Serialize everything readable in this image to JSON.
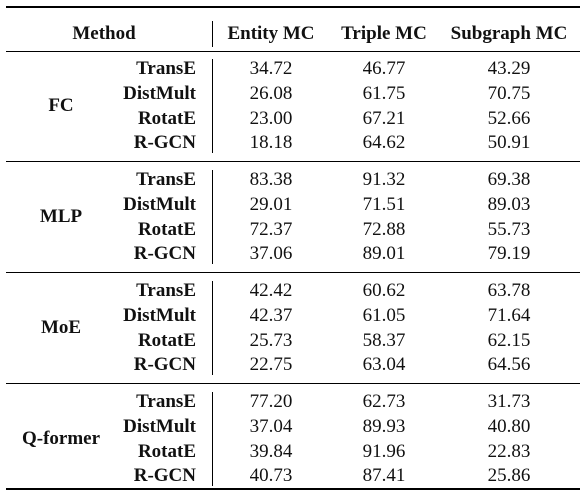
{
  "header": {
    "method": "Method",
    "col1": "Entity MC",
    "col2": "Triple MC",
    "col3": "Subgraph MC"
  },
  "groups": [
    {
      "name": "FC",
      "rows": [
        {
          "model": "TransE",
          "v1": "34.72",
          "v2": "46.77",
          "v3": "43.29"
        },
        {
          "model": "DistMult",
          "v1": "26.08",
          "v2": "61.75",
          "v3": "70.75"
        },
        {
          "model": "RotatE",
          "v1": "23.00",
          "v2": "67.21",
          "v3": "52.66"
        },
        {
          "model": "R-GCN",
          "v1": "18.18",
          "v2": "64.62",
          "v3": "50.91"
        }
      ]
    },
    {
      "name": "MLP",
      "rows": [
        {
          "model": "TransE",
          "v1": "83.38",
          "v2": "91.32",
          "v3": "69.38"
        },
        {
          "model": "DistMult",
          "v1": "29.01",
          "v2": "71.51",
          "v3": "89.03"
        },
        {
          "model": "RotatE",
          "v1": "72.37",
          "v2": "72.88",
          "v3": "55.73"
        },
        {
          "model": "R-GCN",
          "v1": "37.06",
          "v2": "89.01",
          "v3": "79.19"
        }
      ]
    },
    {
      "name": "MoE",
      "rows": [
        {
          "model": "TransE",
          "v1": "42.42",
          "v2": "60.62",
          "v3": "63.78"
        },
        {
          "model": "DistMult",
          "v1": "42.37",
          "v2": "61.05",
          "v3": "71.64"
        },
        {
          "model": "RotatE",
          "v1": "25.73",
          "v2": "58.37",
          "v3": "62.15"
        },
        {
          "model": "R-GCN",
          "v1": "22.75",
          "v2": "63.04",
          "v3": "64.56"
        }
      ]
    },
    {
      "name": "Q-former",
      "rows": [
        {
          "model": "TransE",
          "v1": "77.20",
          "v2": "62.73",
          "v3": "31.73"
        },
        {
          "model": "DistMult",
          "v1": "37.04",
          "v2": "89.93",
          "v3": "40.80"
        },
        {
          "model": "RotatE",
          "v1": "39.84",
          "v2": "91.96",
          "v3": "22.83"
        },
        {
          "model": "R-GCN",
          "v1": "40.73",
          "v2": "87.41",
          "v3": "25.86"
        }
      ]
    }
  ]
}
